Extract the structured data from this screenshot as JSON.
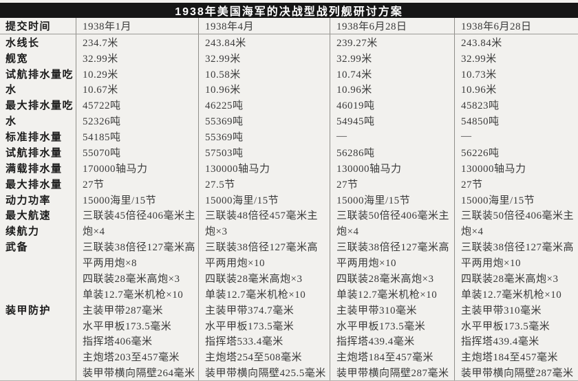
{
  "title": "1938年美国海军的决战型战列舰研讨方案",
  "colors": {
    "title_bg": "#161616",
    "title_fg": "#ffffff",
    "paper": "#f2f1ee",
    "grid_line": "#8f8d89",
    "label_fg": "#1b1b1b",
    "data_fg": "#3a3a3a"
  },
  "table": {
    "rows": [
      {
        "label": "提交时间",
        "c1": "1938年1月",
        "c2": "1938年4月",
        "c3": "1938年6月28日",
        "c4": "1938年6月28日"
      },
      {
        "label": "水线长",
        "c1": "234.7米",
        "c2": "243.84米",
        "c3": "239.27米",
        "c4": "243.84米"
      },
      {
        "label": "舰宽",
        "c1": "32.99米",
        "c2": "32.99米",
        "c3": "32.99米",
        "c4": "32.99米"
      },
      {
        "label": "试航排水量吃",
        "c1": "10.29米",
        "c2": "10.58米",
        "c3": "10.74米",
        "c4": "10.73米"
      },
      {
        "label": "水",
        "c1": "10.67米",
        "c2": "10.96米",
        "c3": "10.96米",
        "c4": "10.96米"
      },
      {
        "label": "最大排水量吃",
        "c1": "45722吨",
        "c2": "46225吨",
        "c3": "46019吨",
        "c4": "45823吨"
      },
      {
        "label": "水",
        "c1": "52326吨",
        "c2": "55369吨",
        "c3": "54945吨",
        "c4": "54850吨"
      },
      {
        "label": "标准排水量",
        "c1": "54185吨",
        "c2": "55369吨",
        "c3": "—",
        "c4": "—"
      },
      {
        "label": "试航排水量",
        "c1": "55070吨",
        "c2": "57503吨",
        "c3": "56286吨",
        "c4": "56226吨"
      },
      {
        "label": "满载排水量",
        "c1": "170000轴马力",
        "c2": "130000轴马力",
        "c3": "130000轴马力",
        "c4": "130000轴马力"
      },
      {
        "label": "最大排水量",
        "c1": "27节",
        "c2": "27.5节",
        "c3": "27节",
        "c4": "27节"
      },
      {
        "label": "动力功率",
        "c1": "15000海里/15节",
        "c2": "15000海里/15节",
        "c3": "15000海里/15节",
        "c4": "15000海里/15节"
      },
      {
        "label": "最大航速",
        "c1": "三联装45倍径406毫米主",
        "c2": "三联装48倍径457毫米主",
        "c3": "三联装50倍径406毫米主",
        "c4": "三联装50倍径406毫米主"
      },
      {
        "label": "续航力",
        "c1": "炮×4",
        "c2": "炮×3",
        "c3": "炮×4",
        "c4": "炮×4"
      },
      {
        "label": "武备",
        "c1": "三联装38倍径127毫米高",
        "c2": "三联装38倍径127毫米高",
        "c3": "三联装38倍径127毫米高",
        "c4": "三联装38倍径127毫米高"
      },
      {
        "label": "",
        "c1": "平两用炮×8",
        "c2": "平两用炮×10",
        "c3": "平两用炮×10",
        "c4": "平两用炮×10"
      },
      {
        "label": "",
        "c1": "四联装28毫米高炮×3",
        "c2": "四联装28毫米高炮×3",
        "c3": "四联装28毫米高炮×3",
        "c4": "四联装28毫米高炮×3"
      },
      {
        "label": "",
        "c1": "单装12.7毫米机枪×10",
        "c2": "单装12.7毫米机枪×10",
        "c3": "单装12.7毫米机枪×10",
        "c4": "单装12.7毫米机枪×10"
      },
      {
        "label": "装甲防护",
        "c1": "主装甲带287毫米",
        "c2": "主装甲带374.7毫米",
        "c3": "主装甲带310毫米",
        "c4": "主装甲带310毫米"
      },
      {
        "label": "",
        "c1": "水平甲板173.5毫米",
        "c2": "水平甲板173.5毫米",
        "c3": "水平甲板173.5毫米",
        "c4": "水平甲板173.5毫米"
      },
      {
        "label": "",
        "c1": "指挥塔406毫米",
        "c2": "指挥塔533.4毫米",
        "c3": "指挥塔439.4毫米",
        "c4": "指挥塔439.4毫米"
      },
      {
        "label": "",
        "c1": "主炮塔203至457毫米",
        "c2": "主炮塔254至508毫米",
        "c3": "主炮塔184至457毫米",
        "c4": "主炮塔184至457毫米"
      },
      {
        "label": "",
        "c1": "装甲带横向隔壁264毫米",
        "c2": "装甲带横向隔壁425.5毫米",
        "c3": "装甲带横向隔壁287毫米",
        "c4": "装甲带横向隔壁287毫米"
      }
    ]
  }
}
